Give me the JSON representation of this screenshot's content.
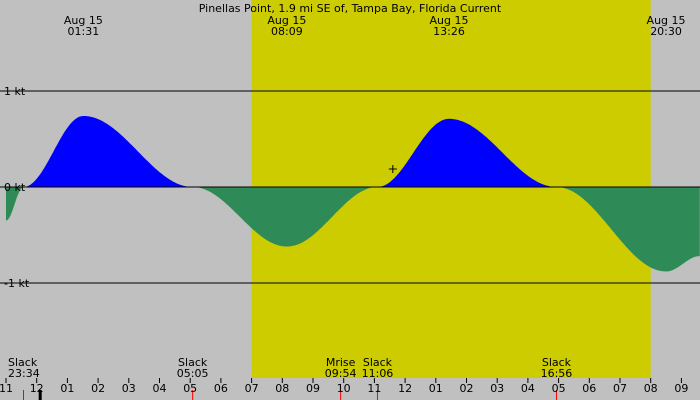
{
  "chart_data": {
    "type": "area",
    "title": "Pinellas Point, 1.9 mi SE of, Tampa Bay, Florida Current",
    "ylim": [
      -1.8,
      1.8
    ],
    "xlim_hours": [
      -1.0,
      21.6
    ],
    "y_ticks": [
      {
        "value": 1,
        "label": "1 kt"
      },
      {
        "value": 0,
        "label": "0 kt"
      },
      {
        "value": -1,
        "label": "-1 kt"
      }
    ],
    "x_tick_labels": [
      {
        "hour": -1,
        "label": "11"
      },
      {
        "hour": 0,
        "label": "12"
      },
      {
        "hour": 1,
        "label": "01"
      },
      {
        "hour": 2,
        "label": "02"
      },
      {
        "hour": 3,
        "label": "03"
      },
      {
        "hour": 4,
        "label": "04"
      },
      {
        "hour": 5,
        "label": "05"
      },
      {
        "hour": 6,
        "label": "06"
      },
      {
        "hour": 7,
        "label": "07"
      },
      {
        "hour": 8,
        "label": "08"
      },
      {
        "hour": 9,
        "label": "09"
      },
      {
        "hour": 10,
        "label": "10"
      },
      {
        "hour": 11,
        "label": "11"
      },
      {
        "hour": 12,
        "label": "12"
      },
      {
        "hour": 13,
        "label": "01"
      },
      {
        "hour": 14,
        "label": "02"
      },
      {
        "hour": 15,
        "label": "03"
      },
      {
        "hour": 16,
        "label": "04"
      },
      {
        "hour": 17,
        "label": "05"
      },
      {
        "hour": 18,
        "label": "06"
      },
      {
        "hour": 19,
        "label": "07"
      },
      {
        "hour": 20,
        "label": "08"
      },
      {
        "hour": 21,
        "label": "09"
      }
    ],
    "top_labels": [
      {
        "hour": 1.52,
        "line1": "Aug 15",
        "line2": "01:31"
      },
      {
        "hour": 8.15,
        "line1": "Aug 15",
        "line2": "08:09"
      },
      {
        "hour": 13.43,
        "line1": "Aug 15",
        "line2": "13:26"
      },
      {
        "hour": 20.5,
        "line1": "Aug 15",
        "line2": "20:30"
      }
    ],
    "bottom_labels": [
      {
        "hour": -0.43,
        "line1": "Slack",
        "line2": "23:34"
      },
      {
        "hour": 5.08,
        "line1": "Slack",
        "line2": "05:05"
      },
      {
        "hour": 9.9,
        "line1": "Mrise",
        "line2": "09:54"
      },
      {
        "hour": 11.1,
        "line1": "Slack",
        "line2": "11:06"
      },
      {
        "hour": 16.93,
        "line1": "Slack",
        "line2": "16:56"
      }
    ],
    "daylight": {
      "start_hour": 7.0,
      "end_hour": 20.0
    },
    "current_points": [
      {
        "hour": -1.0,
        "kt": -0.35
      },
      {
        "hour": -0.43,
        "kt": 0.0
      },
      {
        "hour": 1.52,
        "kt": 0.74
      },
      {
        "hour": 5.08,
        "kt": 0.0
      },
      {
        "hour": 8.15,
        "kt": -0.62
      },
      {
        "hour": 11.1,
        "kt": 0.0
      },
      {
        "hour": 13.43,
        "kt": 0.71
      },
      {
        "hour": 16.93,
        "kt": 0.0
      },
      {
        "hour": 20.5,
        "kt": -0.88
      },
      {
        "hour": 21.6,
        "kt": -0.72
      }
    ],
    "colors": {
      "background": "#c0c0c0",
      "daylight": "#cccc00",
      "flood": "#0000ff",
      "ebb": "#2e8b57",
      "axis": "#000000",
      "event_tick": "#ff0000",
      "now_tick": "#000000"
    },
    "now_marker_hour": 0.0
  }
}
